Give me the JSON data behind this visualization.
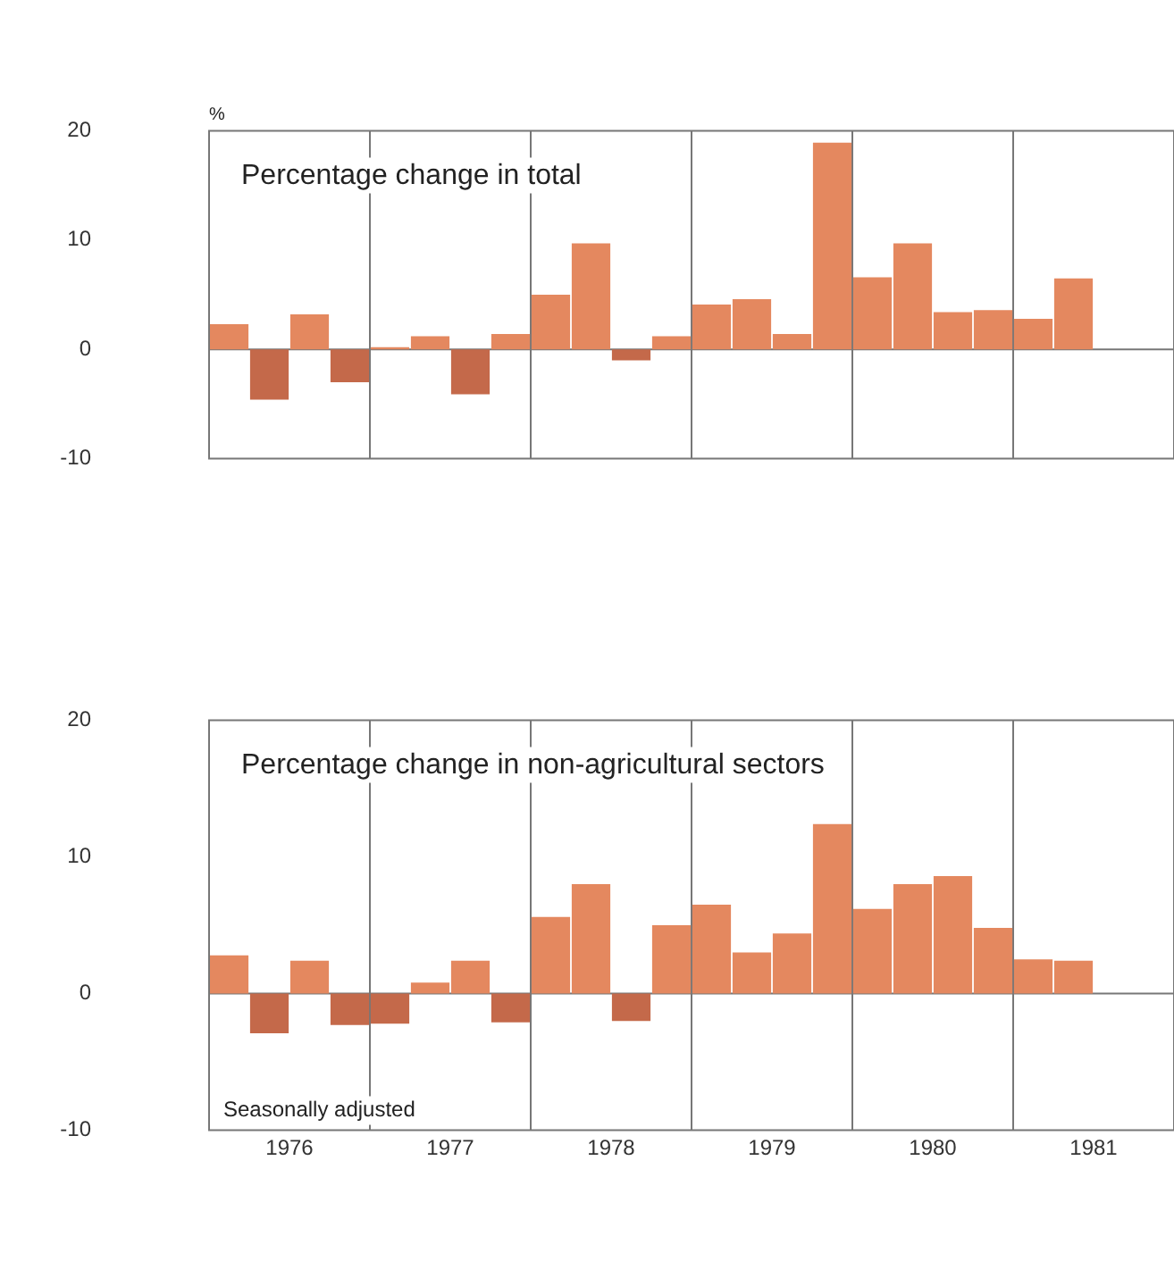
{
  "chart_data": [
    {
      "type": "bar",
      "title": "Percentage change in total",
      "ylabel": "%",
      "x": [
        1976.125,
        1976.375,
        1976.625,
        1976.875,
        1977.125,
        1977.375,
        1977.625,
        1977.875,
        1978.125,
        1978.375,
        1978.625,
        1978.875,
        1979.125,
        1979.375,
        1979.625,
        1979.875,
        1980.125,
        1980.375,
        1980.625,
        1980.875,
        1981.125,
        1981.375
      ],
      "values": [
        2.3,
        -4.6,
        3.2,
        -3.0,
        0.2,
        1.2,
        -4.1,
        1.4,
        5.0,
        9.7,
        -1.0,
        1.2,
        4.1,
        4.6,
        1.4,
        18.9,
        6.6,
        9.7,
        3.4,
        3.6,
        2.8,
        6.5
      ],
      "colors": [
        "#e4885f",
        "#c4694a",
        "#e4885f",
        "#c4694a",
        "#e4885f",
        "#e4885f",
        "#c4694a",
        "#e4885f",
        "#e4885f",
        "#e4885f",
        "#c4694a",
        "#e4885f",
        "#e4885f",
        "#e4885f",
        "#e4885f",
        "#e4885f",
        "#e4885f",
        "#e4885f",
        "#e4885f",
        "#e4885f",
        "#e4885f",
        "#e4885f"
      ],
      "xlim": [
        1976,
        1982
      ],
      "xticks": [
        {
          "value": 1976.5,
          "label": null
        },
        {
          "value": 1977.5,
          "label": null
        },
        {
          "value": 1978.5,
          "label": null
        },
        {
          "value": 1979.5,
          "label": null
        },
        {
          "value": 1980.5,
          "label": null
        },
        {
          "value": 1981.5,
          "label": null
        }
      ],
      "ylim": [
        -10,
        20
      ],
      "yticks": [
        -10,
        0,
        10,
        20
      ],
      "tick_labels": "y",
      "ref_lines": [
        {
          "axis": "y",
          "value": 0,
          "color": "#777777"
        },
        {
          "axis": "x",
          "value": 1977,
          "color": "#777777"
        },
        {
          "axis": "x",
          "value": 1978,
          "color": "#777777"
        },
        {
          "axis": "x",
          "value": 1979,
          "color": "#777777"
        },
        {
          "axis": "x",
          "value": 1980,
          "color": "#777777"
        },
        {
          "axis": "x",
          "value": 1981,
          "color": "#777777"
        }
      ]
    },
    {
      "type": "bar",
      "title": "Percentage change in non-agricultural sectors",
      "x": [
        1976.125,
        1976.375,
        1976.625,
        1976.875,
        1977.125,
        1977.375,
        1977.625,
        1977.875,
        1978.125,
        1978.375,
        1978.625,
        1978.875,
        1979.125,
        1979.375,
        1979.625,
        1979.875,
        1980.125,
        1980.375,
        1980.625,
        1980.875,
        1981.125,
        1981.375
      ],
      "values": [
        2.8,
        -2.9,
        2.4,
        -2.3,
        -2.2,
        0.8,
        2.4,
        -2.1,
        5.6,
        8.0,
        -2.0,
        5.0,
        6.5,
        3.0,
        4.4,
        12.4,
        6.2,
        8.0,
        8.6,
        4.8,
        2.5,
        2.4
      ],
      "colors": [
        "#e4885f",
        "#c4694a",
        "#e4885f",
        "#c4694a",
        "#c4694a",
        "#e4885f",
        "#e4885f",
        "#c4694a",
        "#e4885f",
        "#e4885f",
        "#c4694a",
        "#e4885f",
        "#e4885f",
        "#e4885f",
        "#e4885f",
        "#e4885f",
        "#e4885f",
        "#e4885f",
        "#e4885f",
        "#e4885f",
        "#e4885f",
        "#e4885f"
      ],
      "xlim": [
        1976,
        1982
      ],
      "xticks": [
        {
          "value": 1976.5,
          "label": "1976"
        },
        {
          "value": 1977.5,
          "label": "1977"
        },
        {
          "value": 1978.5,
          "label": "1978"
        },
        {
          "value": 1979.5,
          "label": "1979"
        },
        {
          "value": 1980.5,
          "label": "1980"
        },
        {
          "value": 1981.5,
          "label": "1981"
        }
      ],
      "ylim": [
        -10,
        20
      ],
      "yticks": [
        -10,
        0,
        10,
        20
      ],
      "annotations": [
        "Seasonally adjusted"
      ],
      "ref_lines": [
        {
          "axis": "y",
          "value": 0,
          "color": "#777777"
        },
        {
          "axis": "x",
          "value": 1977,
          "color": "#777777"
        },
        {
          "axis": "x",
          "value": 1978,
          "color": "#777777"
        },
        {
          "axis": "x",
          "value": 1979,
          "color": "#777777"
        },
        {
          "axis": "x",
          "value": 1980,
          "color": "#777777"
        },
        {
          "axis": "x",
          "value": 1981,
          "color": "#777777"
        }
      ]
    }
  ]
}
